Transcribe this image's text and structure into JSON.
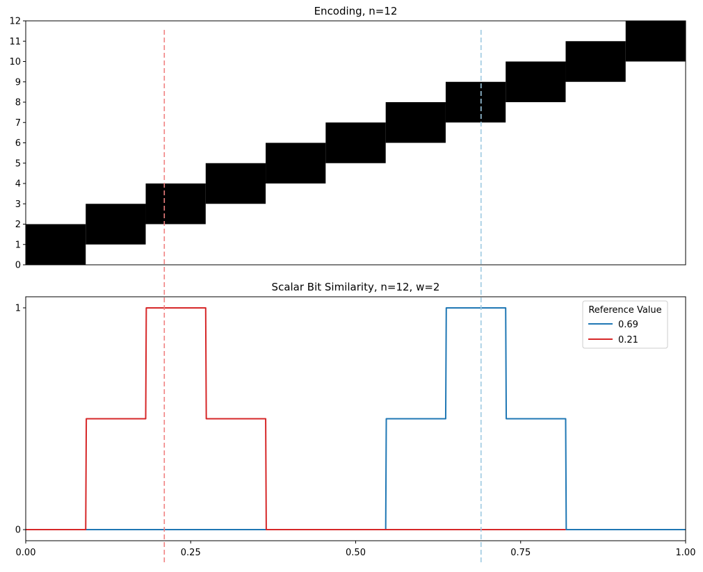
{
  "chart_data": [
    {
      "type": "heatmap",
      "title": "Encoding, n=12",
      "xlabel": "",
      "ylabel": "",
      "xlim": [
        0,
        1
      ],
      "ylim": [
        0,
        12
      ],
      "yticks": [
        0,
        1,
        2,
        3,
        4,
        5,
        6,
        7,
        8,
        9,
        10,
        11,
        12
      ],
      "n": 12,
      "w": 2,
      "bins": 11,
      "active_color": "#000000",
      "blocks": [
        {
          "x0": 0.0,
          "x1": 0.0909,
          "y0": 0,
          "y1": 2
        },
        {
          "x0": 0.0909,
          "x1": 0.1818,
          "y0": 1,
          "y1": 3
        },
        {
          "x0": 0.1818,
          "x1": 0.2727,
          "y0": 2,
          "y1": 4
        },
        {
          "x0": 0.2727,
          "x1": 0.3636,
          "y0": 3,
          "y1": 5
        },
        {
          "x0": 0.3636,
          "x1": 0.4545,
          "y0": 4,
          "y1": 6
        },
        {
          "x0": 0.4545,
          "x1": 0.5455,
          "y0": 5,
          "y1": 7
        },
        {
          "x0": 0.5455,
          "x1": 0.6364,
          "y0": 6,
          "y1": 8
        },
        {
          "x0": 0.6364,
          "x1": 0.7273,
          "y0": 7,
          "y1": 9
        },
        {
          "x0": 0.7273,
          "x1": 0.8182,
          "y0": 8,
          "y1": 10
        },
        {
          "x0": 0.8182,
          "x1": 0.9091,
          "y0": 9,
          "y1": 11
        },
        {
          "x0": 0.9091,
          "x1": 1.0,
          "y0": 10,
          "y1": 12
        }
      ]
    },
    {
      "type": "line",
      "title": "Scalar Bit Similarity, n=12, w=2",
      "xlabel": "",
      "ylabel": "",
      "xlim": [
        0,
        1
      ],
      "ylim": [
        -0.05,
        1.05
      ],
      "xticks": [
        0.0,
        0.25,
        0.5,
        0.75,
        1.0
      ],
      "xtick_labels": [
        "0.00",
        "0.25",
        "0.50",
        "0.75",
        "1.00"
      ],
      "yticks": [
        0,
        1
      ],
      "legend": {
        "title": "Reference Value",
        "placement": "top-right"
      },
      "series": [
        {
          "name": "0.69",
          "color": "#1f77b4",
          "x": [
            0.0,
            0.5455,
            0.5464,
            0.6364,
            0.6373,
            0.7273,
            0.7282,
            0.8182,
            0.8191,
            1.0
          ],
          "y": [
            0,
            0,
            0.5,
            0.5,
            1,
            1,
            0.5,
            0.5,
            0,
            0
          ]
        },
        {
          "name": "0.21",
          "color": "#d62728",
          "x": [
            0.0,
            0.0909,
            0.0918,
            0.1818,
            0.1827,
            0.2727,
            0.2736,
            0.3636,
            0.3645,
            0.8182
          ],
          "y": [
            0,
            0,
            0.5,
            0.5,
            1,
            1,
            0.5,
            0.5,
            0,
            0
          ]
        }
      ]
    }
  ],
  "reference_lines": [
    {
      "value": 0.21,
      "color": "#f08080"
    },
    {
      "value": 0.69,
      "color": "#9ecae1"
    }
  ]
}
